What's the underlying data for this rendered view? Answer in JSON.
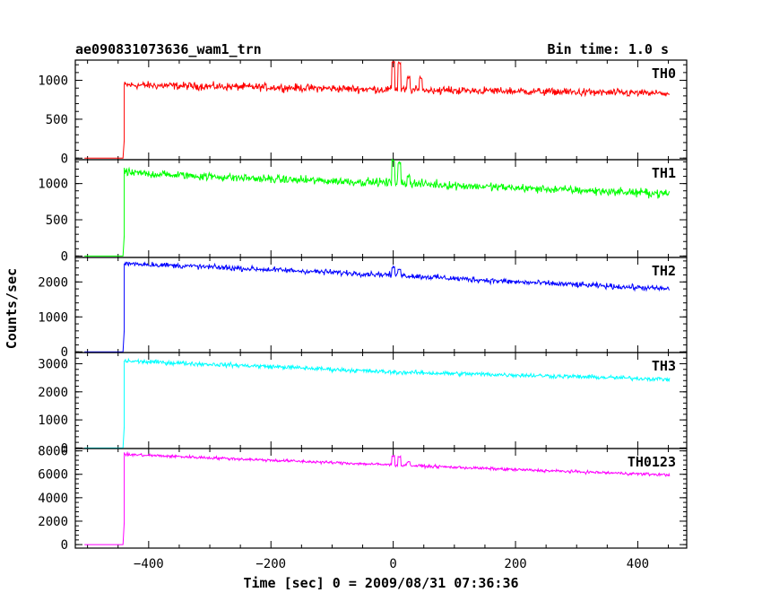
{
  "header": {
    "title": "ae090831073636_wam1_trn",
    "bin_time": "Bin time: 1.0 s"
  },
  "chart_data": {
    "type": "line",
    "xlabel": "Time [sec] 0 = 2009/08/31 07:36:36",
    "ylabel": "Counts/sec",
    "xlim": [
      -520,
      480
    ],
    "x_ticks": [
      -400,
      -200,
      0,
      200,
      400
    ],
    "x_tick_labels": [
      "−400",
      "−200",
      "0",
      "200",
      "400"
    ],
    "panels": [
      {
        "name": "TH0",
        "color": "#ff0000",
        "ylim": [
          -20,
          1260
        ],
        "y_ticks": [
          0,
          500,
          1000
        ],
        "y_tick_labels": [
          "0",
          "500",
          "1000"
        ],
        "pre_level": 0,
        "onset": -440,
        "trend": [
          [
            -440,
            940
          ],
          [
            -200,
            910
          ],
          [
            0,
            880
          ],
          [
            200,
            860
          ],
          [
            450,
            830
          ]
        ],
        "noise": 35,
        "spikes": [
          [
            0,
            1250
          ],
          [
            10,
            1240
          ],
          [
            25,
            1060
          ],
          [
            45,
            1050
          ]
        ]
      },
      {
        "name": "TH1",
        "color": "#00ff00",
        "ylim": [
          -20,
          1330
        ],
        "y_ticks": [
          0,
          500,
          1000
        ],
        "y_tick_labels": [
          "0",
          "500",
          "1000"
        ],
        "pre_level": 0,
        "onset": -440,
        "trend": [
          [
            -440,
            1150
          ],
          [
            -200,
            1060
          ],
          [
            0,
            1010
          ],
          [
            200,
            940
          ],
          [
            450,
            860
          ]
        ],
        "noise": 40,
        "spikes": [
          [
            0,
            1330
          ],
          [
            10,
            1300
          ],
          [
            25,
            1130
          ]
        ]
      },
      {
        "name": "TH2",
        "color": "#0000ff",
        "ylim": [
          -20,
          2700
        ],
        "y_ticks": [
          0,
          1000,
          2000
        ],
        "y_tick_labels": [
          "0",
          "1000",
          "2000"
        ],
        "pre_level": 0,
        "onset": -440,
        "trend": [
          [
            -440,
            2530
          ],
          [
            -200,
            2350
          ],
          [
            0,
            2200
          ],
          [
            200,
            2000
          ],
          [
            450,
            1800
          ]
        ],
        "noise": 55,
        "spikes": [
          [
            0,
            2450
          ],
          [
            10,
            2380
          ]
        ]
      },
      {
        "name": "TH3",
        "color": "#00ffff",
        "ylim": [
          -20,
          3400
        ],
        "y_ticks": [
          0,
          1000,
          2000,
          3000
        ],
        "y_tick_labels": [
          "0",
          "1000",
          "2000",
          "3000"
        ],
        "pre_level": 0,
        "onset": -440,
        "trend": [
          [
            -440,
            3100
          ],
          [
            -200,
            2900
          ],
          [
            0,
            2700
          ],
          [
            200,
            2600
          ],
          [
            450,
            2450
          ]
        ],
        "noise": 55,
        "spikes": []
      },
      {
        "name": "TH0123",
        "color": "#ff00ff",
        "ylim": [
          -300,
          8200
        ],
        "y_ticks": [
          0,
          2000,
          4000,
          6000,
          8000
        ],
        "y_tick_labels": [
          "0",
          "2000",
          "4000",
          "6000",
          "8000"
        ],
        "pre_level": 0,
        "onset": -440,
        "trend": [
          [
            -440,
            7700
          ],
          [
            -200,
            7200
          ],
          [
            0,
            6800
          ],
          [
            200,
            6400
          ],
          [
            450,
            5950
          ]
        ],
        "noise": 90,
        "spikes": [
          [
            0,
            7600
          ],
          [
            10,
            7550
          ],
          [
            25,
            7100
          ]
        ]
      }
    ]
  }
}
